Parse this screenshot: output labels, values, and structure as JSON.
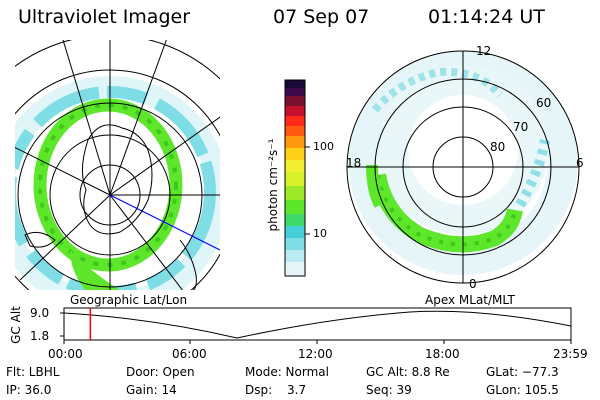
{
  "header": {
    "instrument": "Ultraviolet Imager",
    "date": "07 Sep 07",
    "time": "01:14:24 UT"
  },
  "colorbar": {
    "unit_label": "photon cm⁻²s⁻¹",
    "ticks": [
      "100",
      "10"
    ]
  },
  "left_panel": {
    "caption": "Geographic Lat/Lon"
  },
  "right_panel": {
    "caption": "Apex  MLat/MLT",
    "hour_labels": {
      "top": "12",
      "left": "18",
      "right": "6",
      "bottom": "0"
    },
    "lat_labels": [
      "60",
      "70",
      "80"
    ]
  },
  "timeline": {
    "ylabel": "GC Alt",
    "y_ticks": [
      "9.0",
      "1.8"
    ],
    "x_ticks": [
      "00:00",
      "06:00",
      "12:00",
      "18:00",
      "23:59"
    ],
    "current_time_fraction": 0.052
  },
  "status": {
    "filter": "Flt: LBHL",
    "door": "Door: Open",
    "mode": "Mode: Normal",
    "gc_alt": "GC Alt: 8.8 Re",
    "glat": "GLat: −77.3",
    "ip": "IP: 36.0",
    "gain": "Gain: 14",
    "dsp_label": "Dsp:",
    "dsp_value": "3.7",
    "seq": "Seq: 39",
    "glon": "GLon: 105.5"
  },
  "colors": {
    "aurora_green": "#5ee62a",
    "aurora_cyan": "#55d6e0",
    "aurora_light": "#c6eef2",
    "marker_red": "#ff0000",
    "meridian_blue": "#0000ff"
  }
}
